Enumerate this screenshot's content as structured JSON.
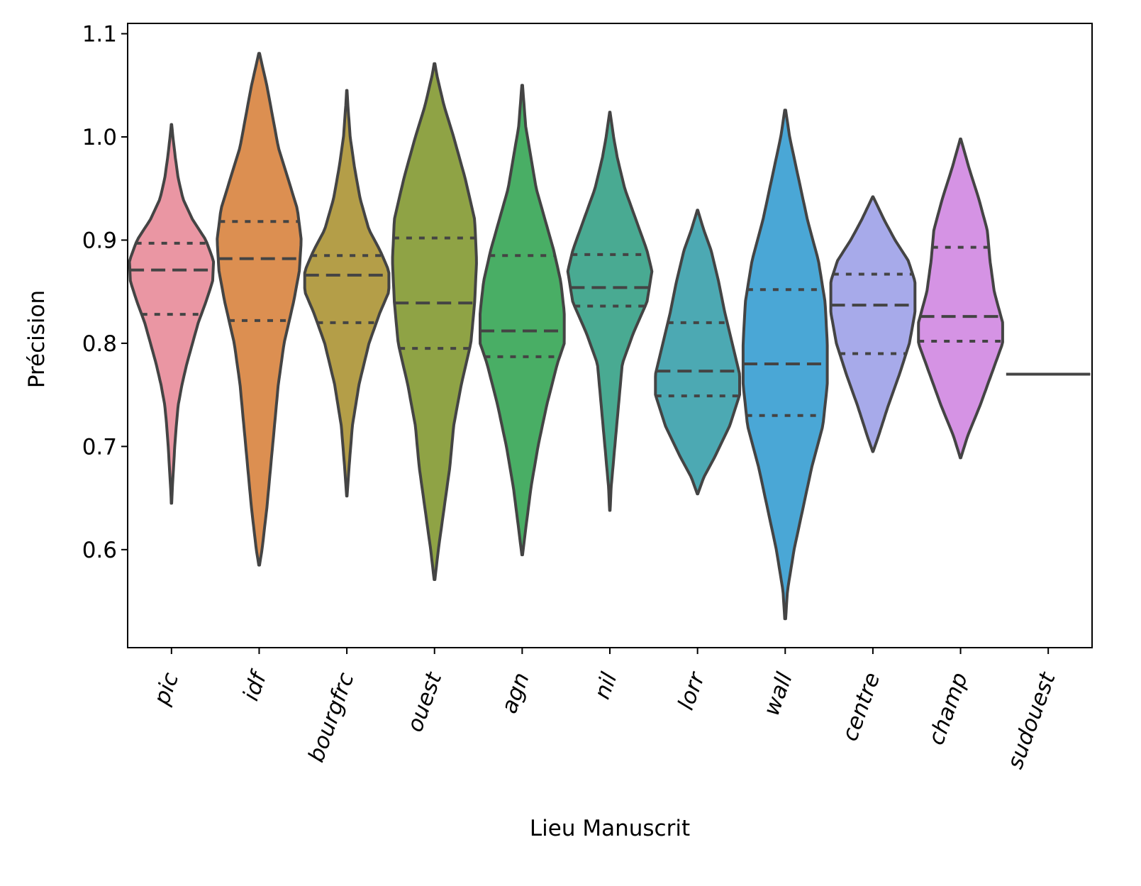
{
  "chart_data": {
    "type": "violin",
    "xlabel": "Lieu Manuscrit",
    "ylabel": "Précision",
    "ylim": [
      0.505,
      1.11
    ],
    "yticks": [
      {
        "value": 0.6,
        "label": "0.6"
      },
      {
        "value": 0.7,
        "label": "0.7"
      },
      {
        "value": 0.8,
        "label": "0.8"
      },
      {
        "value": 0.9,
        "label": "0.9"
      },
      {
        "value": 1.0,
        "label": "1.0"
      },
      {
        "value": 1.1,
        "label": "1.1"
      }
    ],
    "grid": false,
    "legend": "none",
    "inner": "quartile",
    "categories": [
      {
        "name": "pic",
        "color": "#ea96a3",
        "min": 0.645,
        "max": 1.012,
        "q1": 0.828,
        "median": 0.871,
        "q3": 0.897,
        "profile": [
          [
            0.645,
            0.002
          ],
          [
            0.66,
            0.009
          ],
          [
            0.68,
            0.022
          ],
          [
            0.7,
            0.034
          ],
          [
            0.72,
            0.05
          ],
          [
            0.74,
            0.07
          ],
          [
            0.76,
            0.11
          ],
          [
            0.78,
            0.16
          ],
          [
            0.8,
            0.22
          ],
          [
            0.82,
            0.28
          ],
          [
            0.84,
            0.36
          ],
          [
            0.86,
            0.43
          ],
          [
            0.88,
            0.44
          ],
          [
            0.9,
            0.36
          ],
          [
            0.92,
            0.22
          ],
          [
            0.94,
            0.12
          ],
          [
            0.96,
            0.07
          ],
          [
            0.98,
            0.04
          ],
          [
            1.0,
            0.015
          ],
          [
            1.012,
            0.002
          ]
        ]
      },
      {
        "name": "idf",
        "color": "#dc8f51",
        "min": 0.585,
        "max": 1.081,
        "q1": 0.822,
        "median": 0.882,
        "q3": 0.918,
        "profile": [
          [
            0.585,
            0.002
          ],
          [
            0.6,
            0.015
          ],
          [
            0.64,
            0.04
          ],
          [
            0.68,
            0.06
          ],
          [
            0.72,
            0.08
          ],
          [
            0.76,
            0.1
          ],
          [
            0.8,
            0.13
          ],
          [
            0.84,
            0.18
          ],
          [
            0.87,
            0.21
          ],
          [
            0.9,
            0.22
          ],
          [
            0.93,
            0.2
          ],
          [
            0.96,
            0.15
          ],
          [
            0.99,
            0.1
          ],
          [
            1.02,
            0.07
          ],
          [
            1.05,
            0.04
          ],
          [
            1.07,
            0.015
          ],
          [
            1.081,
            0.002
          ]
        ]
      },
      {
        "name": "bourgfrc",
        "color": "#b49e48",
        "min": 0.652,
        "max": 1.045,
        "q1": 0.82,
        "median": 0.866,
        "q3": 0.885,
        "profile": [
          [
            0.652,
            0.002
          ],
          [
            0.68,
            0.02
          ],
          [
            0.72,
            0.05
          ],
          [
            0.76,
            0.11
          ],
          [
            0.8,
            0.2
          ],
          [
            0.83,
            0.3
          ],
          [
            0.85,
            0.38
          ],
          [
            0.87,
            0.38
          ],
          [
            0.89,
            0.3
          ],
          [
            0.91,
            0.2
          ],
          [
            0.94,
            0.12
          ],
          [
            0.97,
            0.07
          ],
          [
            1.0,
            0.03
          ],
          [
            1.03,
            0.01
          ],
          [
            1.045,
            0.002
          ]
        ]
      },
      {
        "name": "ouest",
        "color": "#8fa345",
        "min": 0.571,
        "max": 1.071,
        "q1": 0.795,
        "median": 0.839,
        "q3": 0.902,
        "profile": [
          [
            0.571,
            0.002
          ],
          [
            0.6,
            0.02
          ],
          [
            0.64,
            0.05
          ],
          [
            0.68,
            0.08
          ],
          [
            0.72,
            0.1
          ],
          [
            0.76,
            0.14
          ],
          [
            0.8,
            0.19
          ],
          [
            0.84,
            0.21
          ],
          [
            0.88,
            0.22
          ],
          [
            0.92,
            0.21
          ],
          [
            0.96,
            0.16
          ],
          [
            1.0,
            0.1
          ],
          [
            1.03,
            0.05
          ],
          [
            1.06,
            0.012
          ],
          [
            1.071,
            0.002
          ]
        ]
      },
      {
        "name": "agn",
        "color": "#49ae65",
        "min": 0.595,
        "max": 1.05,
        "q1": 0.787,
        "median": 0.812,
        "q3": 0.885,
        "profile": [
          [
            0.595,
            0.002
          ],
          [
            0.62,
            0.02
          ],
          [
            0.66,
            0.05
          ],
          [
            0.7,
            0.09
          ],
          [
            0.74,
            0.14
          ],
          [
            0.78,
            0.2
          ],
          [
            0.8,
            0.24
          ],
          [
            0.83,
            0.24
          ],
          [
            0.86,
            0.22
          ],
          [
            0.89,
            0.18
          ],
          [
            0.92,
            0.13
          ],
          [
            0.95,
            0.08
          ],
          [
            0.98,
            0.05
          ],
          [
            1.01,
            0.02
          ],
          [
            1.05,
            0.002
          ]
        ]
      },
      {
        "name": "nil",
        "color": "#49aa92",
        "min": 0.638,
        "max": 1.024,
        "q1": 0.836,
        "median": 0.854,
        "q3": 0.886,
        "profile": [
          [
            0.638,
            0.002
          ],
          [
            0.66,
            0.01
          ],
          [
            0.7,
            0.04
          ],
          [
            0.74,
            0.07
          ],
          [
            0.78,
            0.1
          ],
          [
            0.81,
            0.19
          ],
          [
            0.84,
            0.3
          ],
          [
            0.87,
            0.34
          ],
          [
            0.89,
            0.3
          ],
          [
            0.92,
            0.21
          ],
          [
            0.95,
            0.12
          ],
          [
            0.98,
            0.06
          ],
          [
            1.0,
            0.03
          ],
          [
            1.024,
            0.002
          ]
        ]
      },
      {
        "name": "lorr",
        "color": "#4ca9b3",
        "min": 0.654,
        "max": 0.929,
        "q1": 0.749,
        "median": 0.773,
        "q3": 0.82,
        "profile": [
          [
            0.654,
            0.002
          ],
          [
            0.67,
            0.05
          ],
          [
            0.69,
            0.14
          ],
          [
            0.72,
            0.26
          ],
          [
            0.75,
            0.34
          ],
          [
            0.77,
            0.34
          ],
          [
            0.8,
            0.28
          ],
          [
            0.83,
            0.22
          ],
          [
            0.86,
            0.17
          ],
          [
            0.89,
            0.11
          ],
          [
            0.91,
            0.05
          ],
          [
            0.929,
            0.002
          ]
        ]
      },
      {
        "name": "wall",
        "color": "#4aa7d6",
        "min": 0.533,
        "max": 1.026,
        "q1": 0.73,
        "median": 0.78,
        "q3": 0.852,
        "profile": [
          [
            0.533,
            0.002
          ],
          [
            0.56,
            0.01
          ],
          [
            0.6,
            0.04
          ],
          [
            0.64,
            0.08
          ],
          [
            0.68,
            0.12
          ],
          [
            0.72,
            0.17
          ],
          [
            0.76,
            0.19
          ],
          [
            0.8,
            0.19
          ],
          [
            0.84,
            0.18
          ],
          [
            0.88,
            0.15
          ],
          [
            0.92,
            0.1
          ],
          [
            0.96,
            0.06
          ],
          [
            1.0,
            0.02
          ],
          [
            1.026,
            0.002
          ]
        ]
      },
      {
        "name": "centre",
        "color": "#a7aaea",
        "min": 0.695,
        "max": 0.942,
        "q1": 0.79,
        "median": 0.837,
        "q3": 0.867,
        "profile": [
          [
            0.695,
            0.002
          ],
          [
            0.71,
            0.05
          ],
          [
            0.74,
            0.14
          ],
          [
            0.77,
            0.24
          ],
          [
            0.8,
            0.33
          ],
          [
            0.83,
            0.38
          ],
          [
            0.86,
            0.38
          ],
          [
            0.88,
            0.32
          ],
          [
            0.9,
            0.2
          ],
          [
            0.92,
            0.1
          ],
          [
            0.942,
            0.002
          ]
        ]
      },
      {
        "name": "champ",
        "color": "#d593e4",
        "min": 0.689,
        "max": 0.998,
        "q1": 0.802,
        "median": 0.826,
        "q3": 0.893,
        "profile": [
          [
            0.689,
            0.002
          ],
          [
            0.71,
            0.05
          ],
          [
            0.74,
            0.14
          ],
          [
            0.77,
            0.22
          ],
          [
            0.8,
            0.3
          ],
          [
            0.82,
            0.3
          ],
          [
            0.85,
            0.24
          ],
          [
            0.88,
            0.21
          ],
          [
            0.91,
            0.19
          ],
          [
            0.94,
            0.13
          ],
          [
            0.97,
            0.06
          ],
          [
            0.998,
            0.002
          ]
        ]
      },
      {
        "name": "sudouest",
        "color": "#444444",
        "single_value": 0.77
      }
    ]
  }
}
